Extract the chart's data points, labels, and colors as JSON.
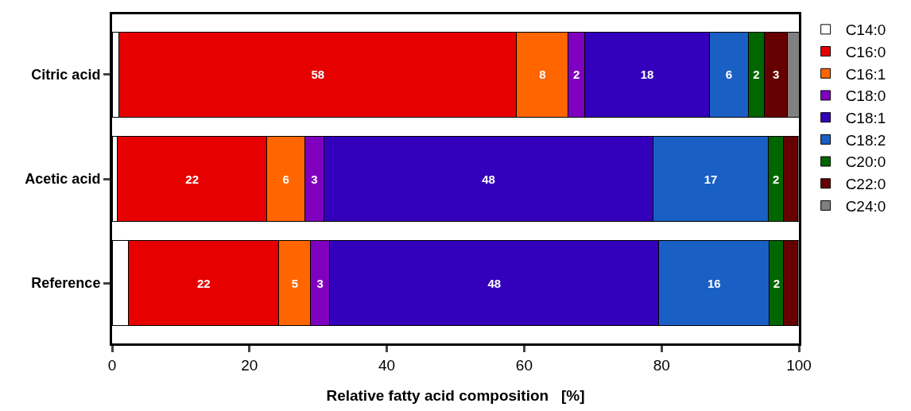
{
  "chart_data": {
    "type": "bar",
    "orientation": "horizontal",
    "stacked": true,
    "xlabel": "Relative fatty acid composition   [%]",
    "categories": [
      "Citric acid",
      "Acetic acid",
      "Reference"
    ],
    "xlim": [
      0,
      100
    ],
    "xticks": [
      0,
      20,
      40,
      60,
      80,
      100
    ],
    "grid": false,
    "legend": "top right",
    "series": [
      {
        "name": "C14:0",
        "color": "#ffffff",
        "values": [
          1.0,
          0.8,
          2.4
        ],
        "value_labels": [
          null,
          null,
          null
        ]
      },
      {
        "name": "C16:0",
        "color": "#e60000",
        "values": [
          57.9,
          21.7,
          21.9
        ],
        "value_labels": [
          "58",
          "22",
          "22"
        ]
      },
      {
        "name": "C16:1",
        "color": "#ff6600",
        "values": [
          7.5,
          5.6,
          4.6
        ],
        "value_labels": [
          "8",
          "6",
          "5"
        ]
      },
      {
        "name": "C18:0",
        "color": "#8000c0",
        "values": [
          2.4,
          2.7,
          2.8
        ],
        "value_labels": [
          "2",
          "3",
          "3"
        ]
      },
      {
        "name": "C18:1",
        "color": "#3300bb",
        "values": [
          18.2,
          48.0,
          47.9
        ],
        "value_labels": [
          "18",
          "48",
          "48"
        ]
      },
      {
        "name": "C18:2",
        "color": "#1a5fc4",
        "values": [
          5.6,
          16.7,
          16.1
        ],
        "value_labels": [
          "6",
          "17",
          "16"
        ]
      },
      {
        "name": "C20:0",
        "color": "#006600",
        "values": [
          2.4,
          2.3,
          2.1
        ],
        "value_labels": [
          "2",
          "2",
          "2"
        ]
      },
      {
        "name": "C22:0",
        "color": "#660000",
        "values": [
          3.3,
          2.0,
          2.0
        ],
        "value_labels": [
          "3",
          null,
          null
        ]
      },
      {
        "name": "C24:0",
        "color": "#808080",
        "values": [
          1.7,
          0.2,
          0.2
        ],
        "value_labels": [
          null,
          null,
          null
        ]
      }
    ]
  }
}
